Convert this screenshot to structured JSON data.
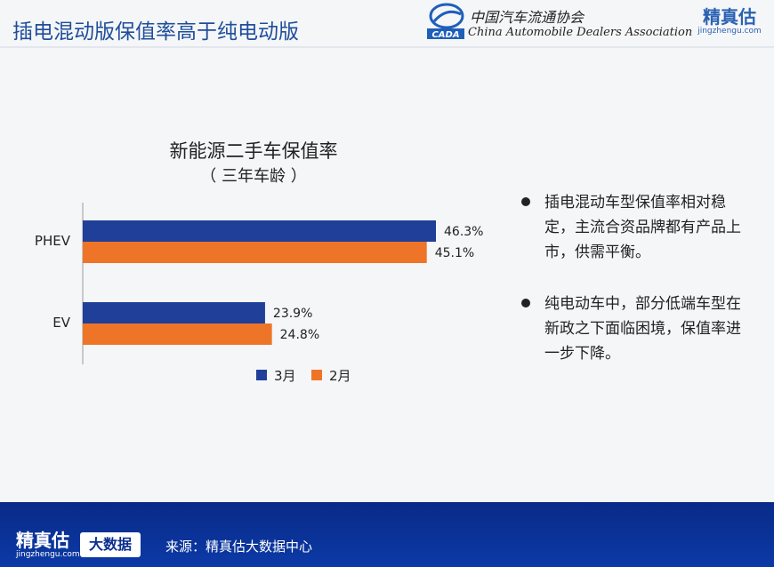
{
  "header": {
    "title": "插电混动版保值率高于纯电动版",
    "association_cn": "中国汽车流通协会",
    "association_en": "China Automobile Dealers Association",
    "association_abbr": "CADA",
    "brand_cn": "精真估",
    "brand_url": "jingzhengu.com"
  },
  "chart": {
    "title": "新能源二手车保值率",
    "subtitle": "（ 三年车龄 ）"
  },
  "chart_data": {
    "type": "bar",
    "orientation": "horizontal",
    "title": "新能源二手车保值率",
    "subtitle": "（ 三年车龄 ）",
    "categories": [
      "PHEV",
      "EV"
    ],
    "series": [
      {
        "name": "3月",
        "values": [
          46.3,
          23.9
        ],
        "labels": [
          "46.3%",
          "23.9%"
        ],
        "color": "#1f3f99"
      },
      {
        "name": "2月",
        "values": [
          45.1,
          24.8
        ],
        "labels": [
          "45.1%",
          "24.8%"
        ],
        "color": "#ee7527"
      }
    ],
    "xlim": [
      0,
      50
    ],
    "grid": false,
    "legend": "bottom"
  },
  "bullets": [
    "插电混动车型保值率相对稳定，主流合资品牌都有产品上市，供需平衡。",
    "纯电动车中，部分低端车型在新政之下面临困境，保值率进一步下降。"
  ],
  "footer": {
    "brand_cn": "精真估",
    "brand_url": "jingzhengu.com",
    "badge": "大数据",
    "source": "来源：精真估大数据中心"
  },
  "colors": {
    "title_blue": "#1f4e9a",
    "footer_blue": "#0b3aa6"
  }
}
